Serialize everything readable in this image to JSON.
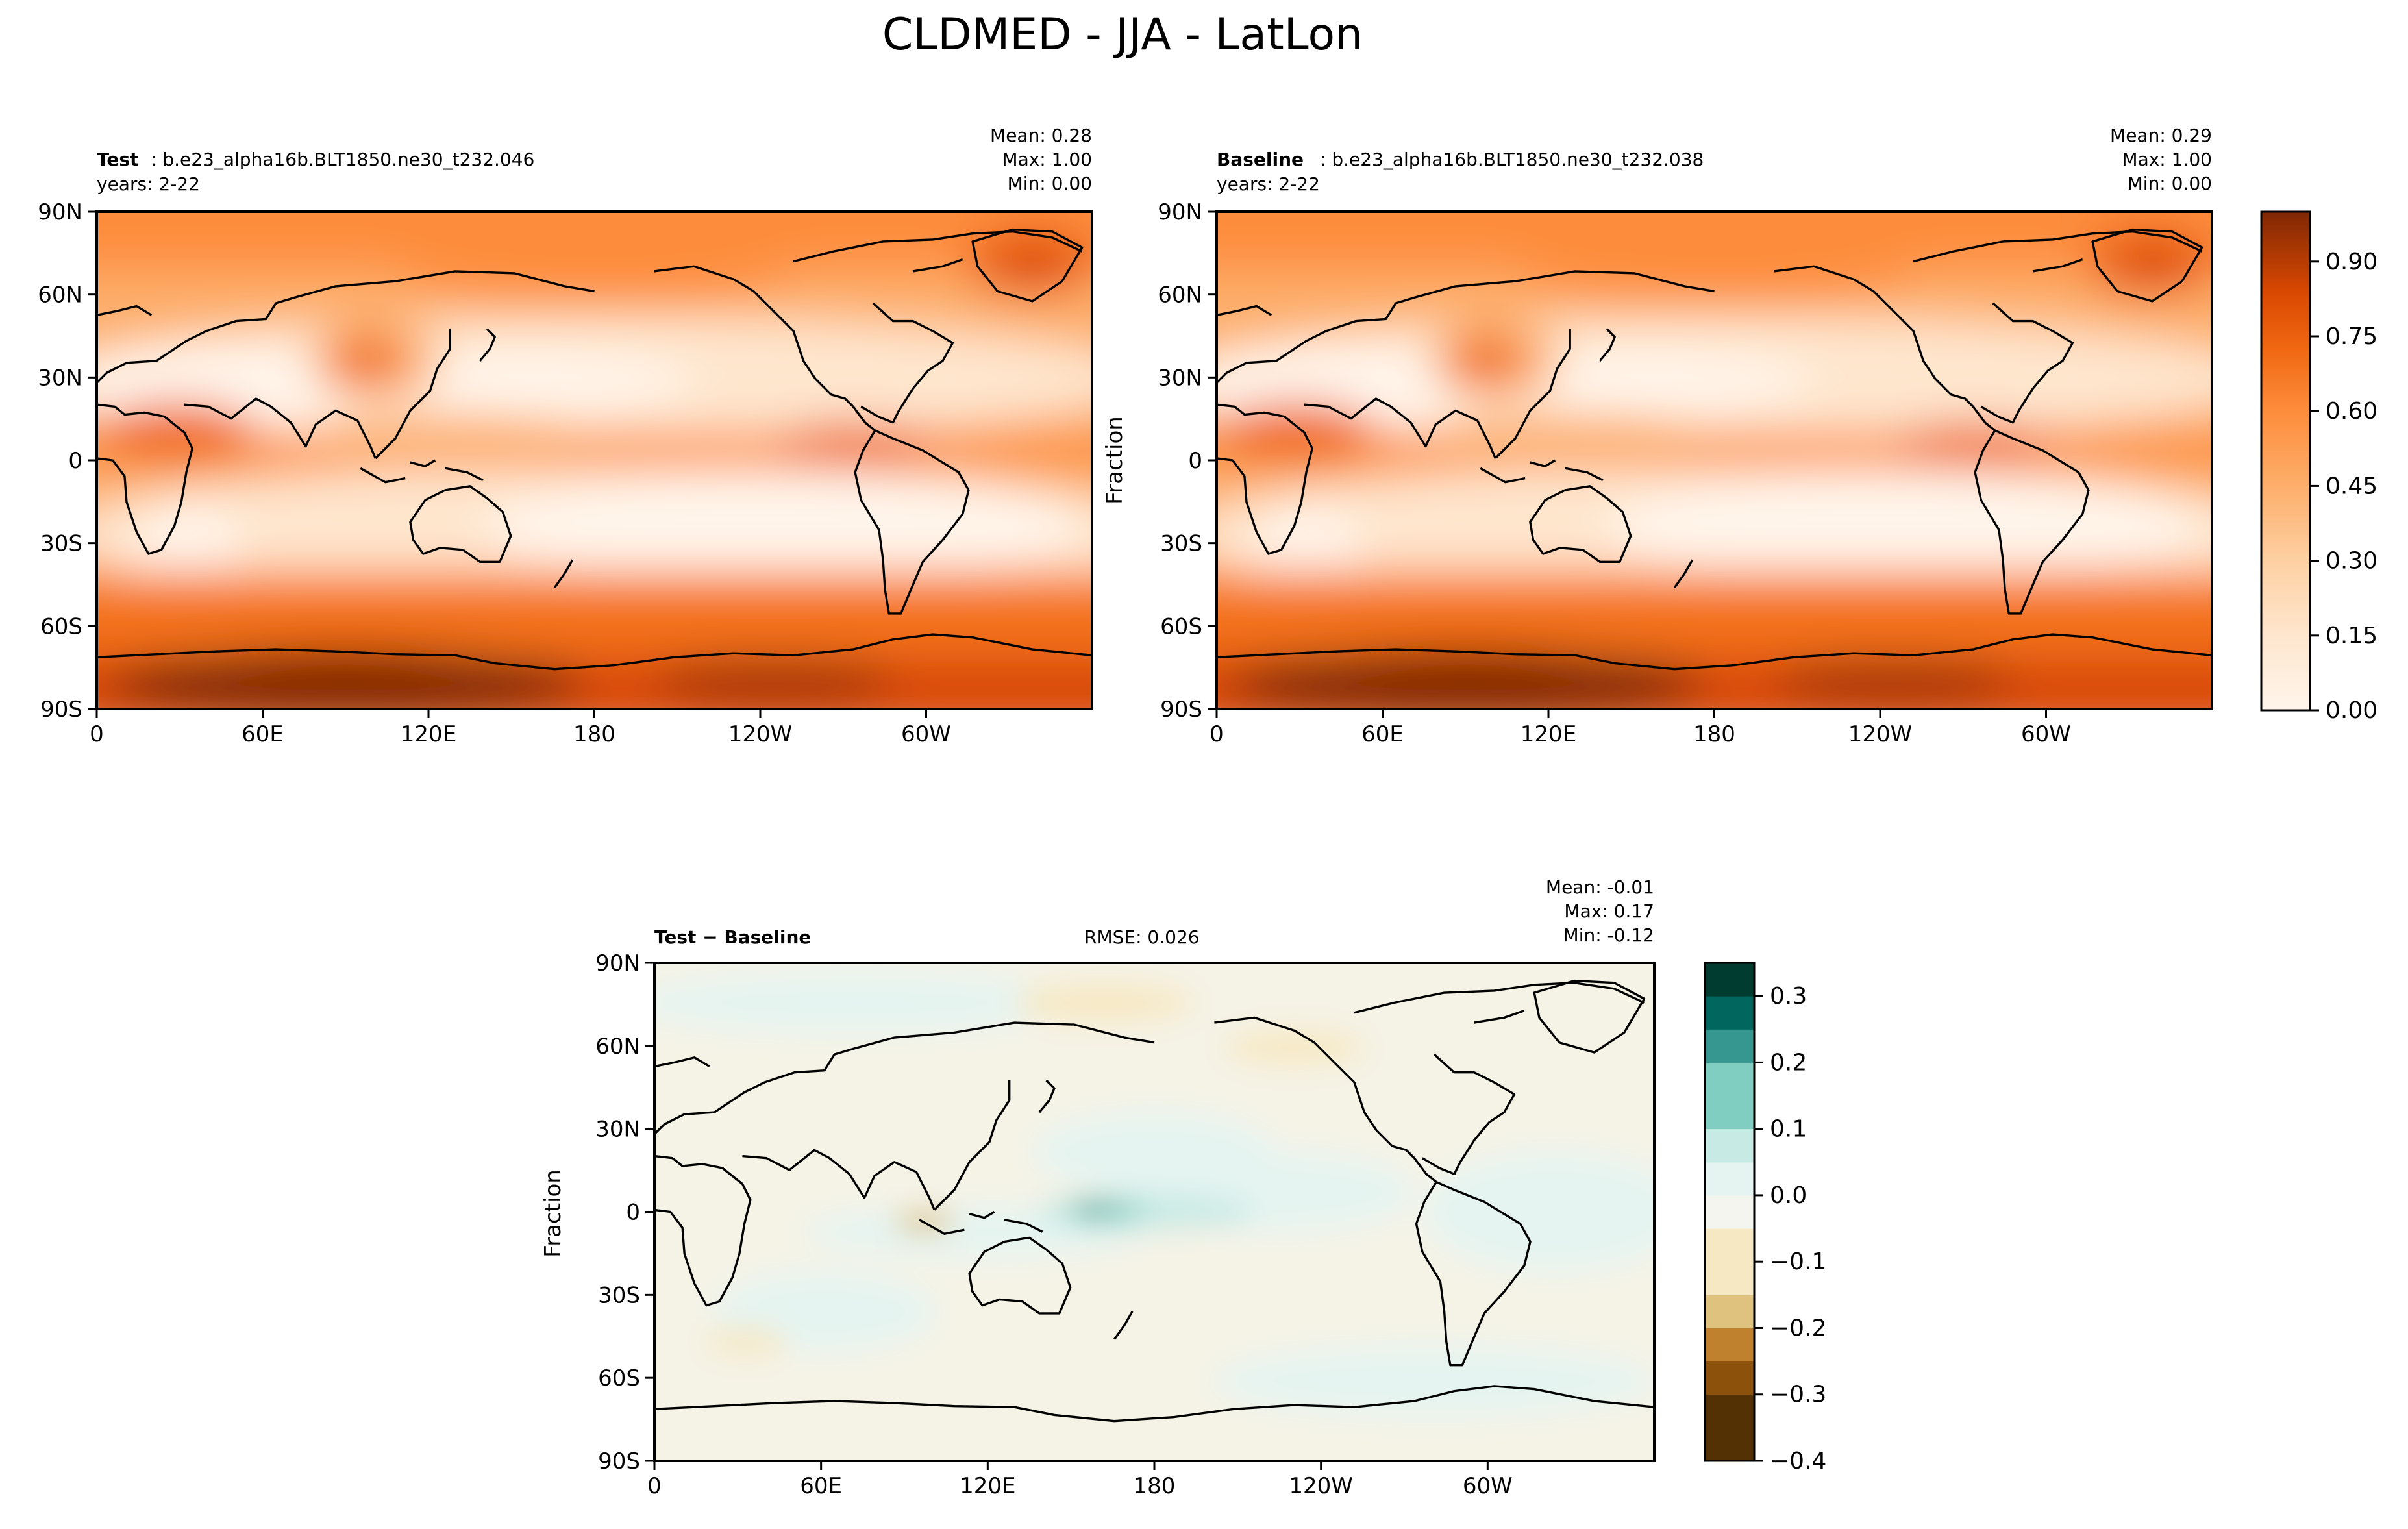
{
  "figure": {
    "title": "CLDMED - JJA - LatLon"
  },
  "colors": {
    "oranges": [
      "#fff5eb",
      "#fee6ce",
      "#fdd0a2",
      "#fdae6b",
      "#fd8d3c",
      "#f16913",
      "#d94801",
      "#a63603",
      "#7f2704"
    ],
    "diff": [
      "#543005",
      "#8c510a",
      "#bf812d",
      "#dfc27d",
      "#f6e8c3",
      "#f5f5f0",
      "#e5f4f1",
      "#c7eae5",
      "#80cdc1",
      "#35978f",
      "#01665e",
      "#003c30"
    ],
    "coast": "#000000"
  },
  "chart_data": [
    {
      "type": "heatmap",
      "panel": "test",
      "label_bold": "Test",
      "label_rest": ": b.e23_alpha16b.BLT1850.ne30_t232.046",
      "years": "years: 2-22",
      "stats": [
        "Mean:  0.28",
        "Max:  1.00",
        "Min:  0.00"
      ],
      "xticks": [
        "0",
        "60E",
        "120E",
        "180",
        "120W",
        "60W"
      ],
      "yticks": [
        "90N",
        "60N",
        "30N",
        "0",
        "30S",
        "60S",
        "90S"
      ],
      "ylabel": "",
      "xlim": [
        0,
        360
      ],
      "ylim": [
        -90,
        90
      ],
      "value_range": [
        0,
        1
      ],
      "mean": 0.28,
      "max": 1.0,
      "min": 0.0
    },
    {
      "type": "heatmap",
      "panel": "baseline",
      "label_bold": "Baseline",
      "label_rest": ": b.e23_alpha16b.BLT1850.ne30_t232.038",
      "years": "years: 2-22",
      "stats": [
        "Mean:  0.29",
        "Max:  1.00",
        "Min:  0.00"
      ],
      "xticks": [
        "0",
        "60E",
        "120E",
        "180",
        "120W",
        "60W"
      ],
      "yticks": [
        "90N",
        "60N",
        "30N",
        "0",
        "30S",
        "60S",
        "90S"
      ],
      "ylabel": "Fraction",
      "xlim": [
        0,
        360
      ],
      "ylim": [
        -90,
        90
      ],
      "value_range": [
        0,
        1
      ],
      "mean": 0.29,
      "max": 1.0,
      "min": 0.0,
      "colorbar": {
        "ticks": [
          "0.00",
          "0.15",
          "0.30",
          "0.45",
          "0.60",
          "0.75",
          "0.90"
        ],
        "range": [
          0,
          1
        ]
      }
    },
    {
      "type": "heatmap",
      "panel": "diff",
      "label_bold": "Test − Baseline",
      "rmse": "RMSE: 0.026",
      "stats": [
        "Mean: -0.01",
        "Max:  0.17",
        "Min: -0.12"
      ],
      "xticks": [
        "0",
        "60E",
        "120E",
        "180",
        "120W",
        "60W"
      ],
      "yticks": [
        "90N",
        "60N",
        "30N",
        "0",
        "30S",
        "60S",
        "90S"
      ],
      "ylabel": "Fraction",
      "xlim": [
        0,
        360
      ],
      "ylim": [
        -90,
        90
      ],
      "mean": -0.01,
      "max": 0.17,
      "min": -0.12,
      "colorbar": {
        "ticks": [
          "0.3",
          "0.2",
          "0.1",
          "0.0",
          "−0.1",
          "−0.2",
          "−0.3",
          "−0.4"
        ],
        "range": [
          -0.4,
          0.35
        ]
      }
    }
  ]
}
